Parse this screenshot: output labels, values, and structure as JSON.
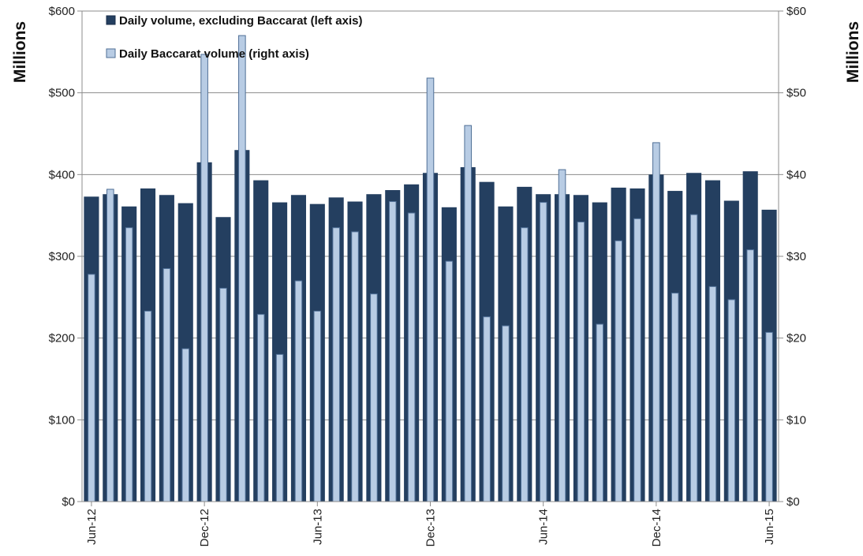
{
  "chart_data": {
    "type": "bar",
    "categories": [
      "Jun-12",
      "Jul-12",
      "Aug-12",
      "Sep-12",
      "Oct-12",
      "Nov-12",
      "Dec-12",
      "Jan-13",
      "Feb-13",
      "Mar-13",
      "Apr-13",
      "May-13",
      "Jun-13",
      "Jul-13",
      "Aug-13",
      "Sep-13",
      "Oct-13",
      "Nov-13",
      "Dec-13",
      "Jan-14",
      "Feb-14",
      "Mar-14",
      "Apr-14",
      "May-14",
      "Jun-14",
      "Jul-14",
      "Aug-14",
      "Sep-14",
      "Oct-14",
      "Nov-14",
      "Dec-14",
      "Jan-15",
      "Feb-15",
      "Mar-15",
      "Apr-15",
      "May-15",
      "Jun-15"
    ],
    "x_tick_labels": [
      "Jun-12",
      "Dec-12",
      "Jun-13",
      "Dec-13",
      "Jun-14",
      "Dec-14",
      "Jun-15"
    ],
    "series": [
      {
        "name": "Daily volume, excluding Baccarat (left axis)",
        "axis": "left",
        "color": "#243f60",
        "values": [
          373,
          376,
          361,
          383,
          375,
          365,
          415,
          348,
          430,
          393,
          366,
          375,
          364,
          372,
          367,
          376,
          381,
          388,
          402,
          360,
          409,
          391,
          361,
          385,
          376,
          376,
          375,
          366,
          384,
          383,
          400,
          380,
          402,
          393,
          368,
          404,
          357
        ]
      },
      {
        "name": "Daily Baccarat volume (right axis)",
        "axis": "right",
        "color": "#b8cce4",
        "values": [
          27.8,
          38.2,
          33.5,
          23.3,
          28.5,
          18.7,
          54.7,
          26.1,
          57.0,
          22.9,
          18.0,
          27.0,
          23.3,
          33.5,
          33.0,
          25.4,
          36.7,
          35.3,
          51.8,
          29.4,
          46.0,
          22.6,
          21.5,
          33.5,
          36.6,
          40.6,
          34.2,
          21.7,
          31.9,
          34.6,
          43.9,
          25.5,
          35.1,
          26.3,
          24.7,
          30.8,
          20.7
        ]
      }
    ],
    "left_axis": {
      "label": "Millions",
      "range": [
        0,
        600
      ],
      "ticks": [
        "$0",
        "$100",
        "$200",
        "$300",
        "$400",
        "$500",
        "$600"
      ]
    },
    "right_axis": {
      "label": "Millions",
      "range": [
        0,
        60
      ],
      "ticks": [
        "$0",
        "$10",
        "$20",
        "$30",
        "$40",
        "$50",
        "$60"
      ]
    },
    "grid": true,
    "legend": "top-left"
  }
}
